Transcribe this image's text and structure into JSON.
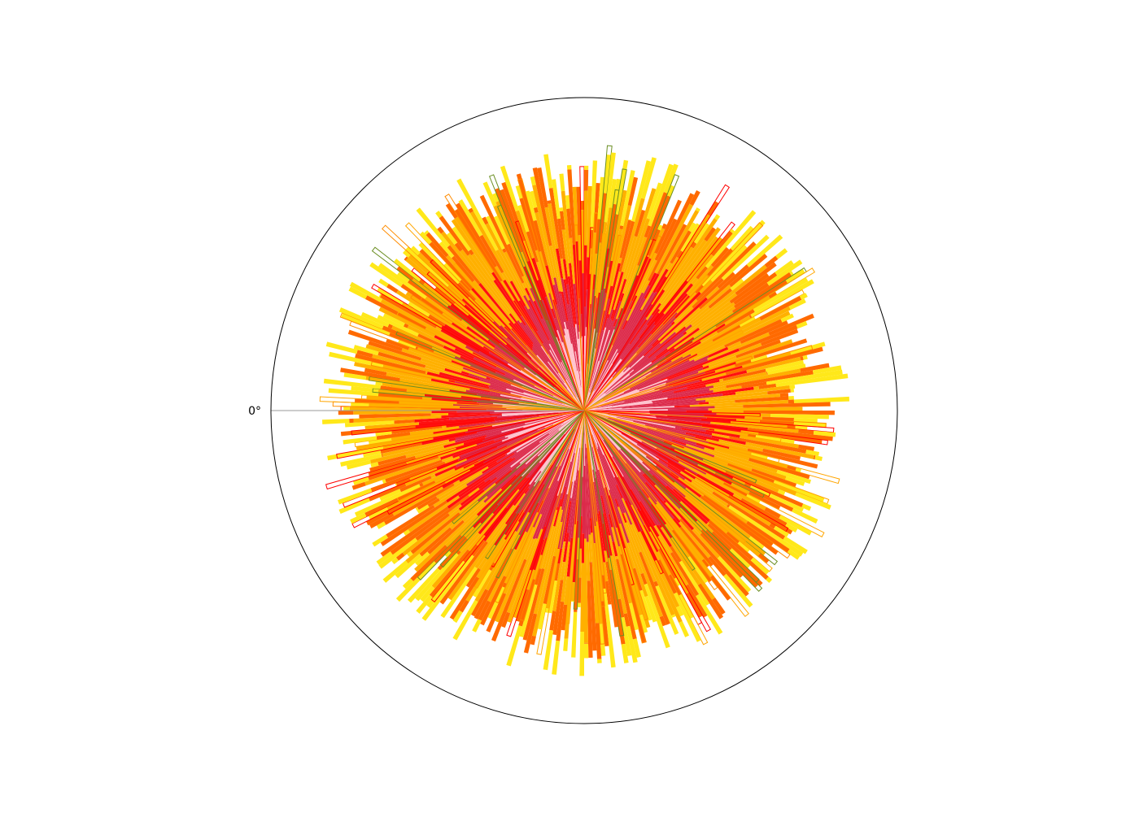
{
  "chart_data": {
    "type": "polar_fan",
    "title": "",
    "angle_tick_labels": [
      "0°"
    ],
    "rlim": [
      0,
      1
    ],
    "grid": false,
    "legend": "none",
    "sector_count": 360,
    "bands": [
      {
        "name": "",
        "color": "#ffc0cb",
        "radius_range": [
          0.0,
          0.3
        ]
      },
      {
        "name": "",
        "color": "#dc2a4a",
        "radius_range": [
          0.25,
          0.45
        ]
      },
      {
        "name": "",
        "color": "#ff1010",
        "radius_range": [
          0.3,
          0.55
        ]
      },
      {
        "name": "",
        "color": "#ffb000",
        "radius_range": [
          0.45,
          0.75
        ]
      },
      {
        "name": "",
        "color": "#ff6a00",
        "radius_range": [
          0.55,
          0.8
        ]
      },
      {
        "name": "",
        "color": "#ffe81a",
        "radius_range": [
          0.6,
          0.85
        ]
      }
    ],
    "accent_colors": [
      "#ff8c00",
      "#ffa500",
      "#6b8e23",
      "#ff0000"
    ]
  }
}
